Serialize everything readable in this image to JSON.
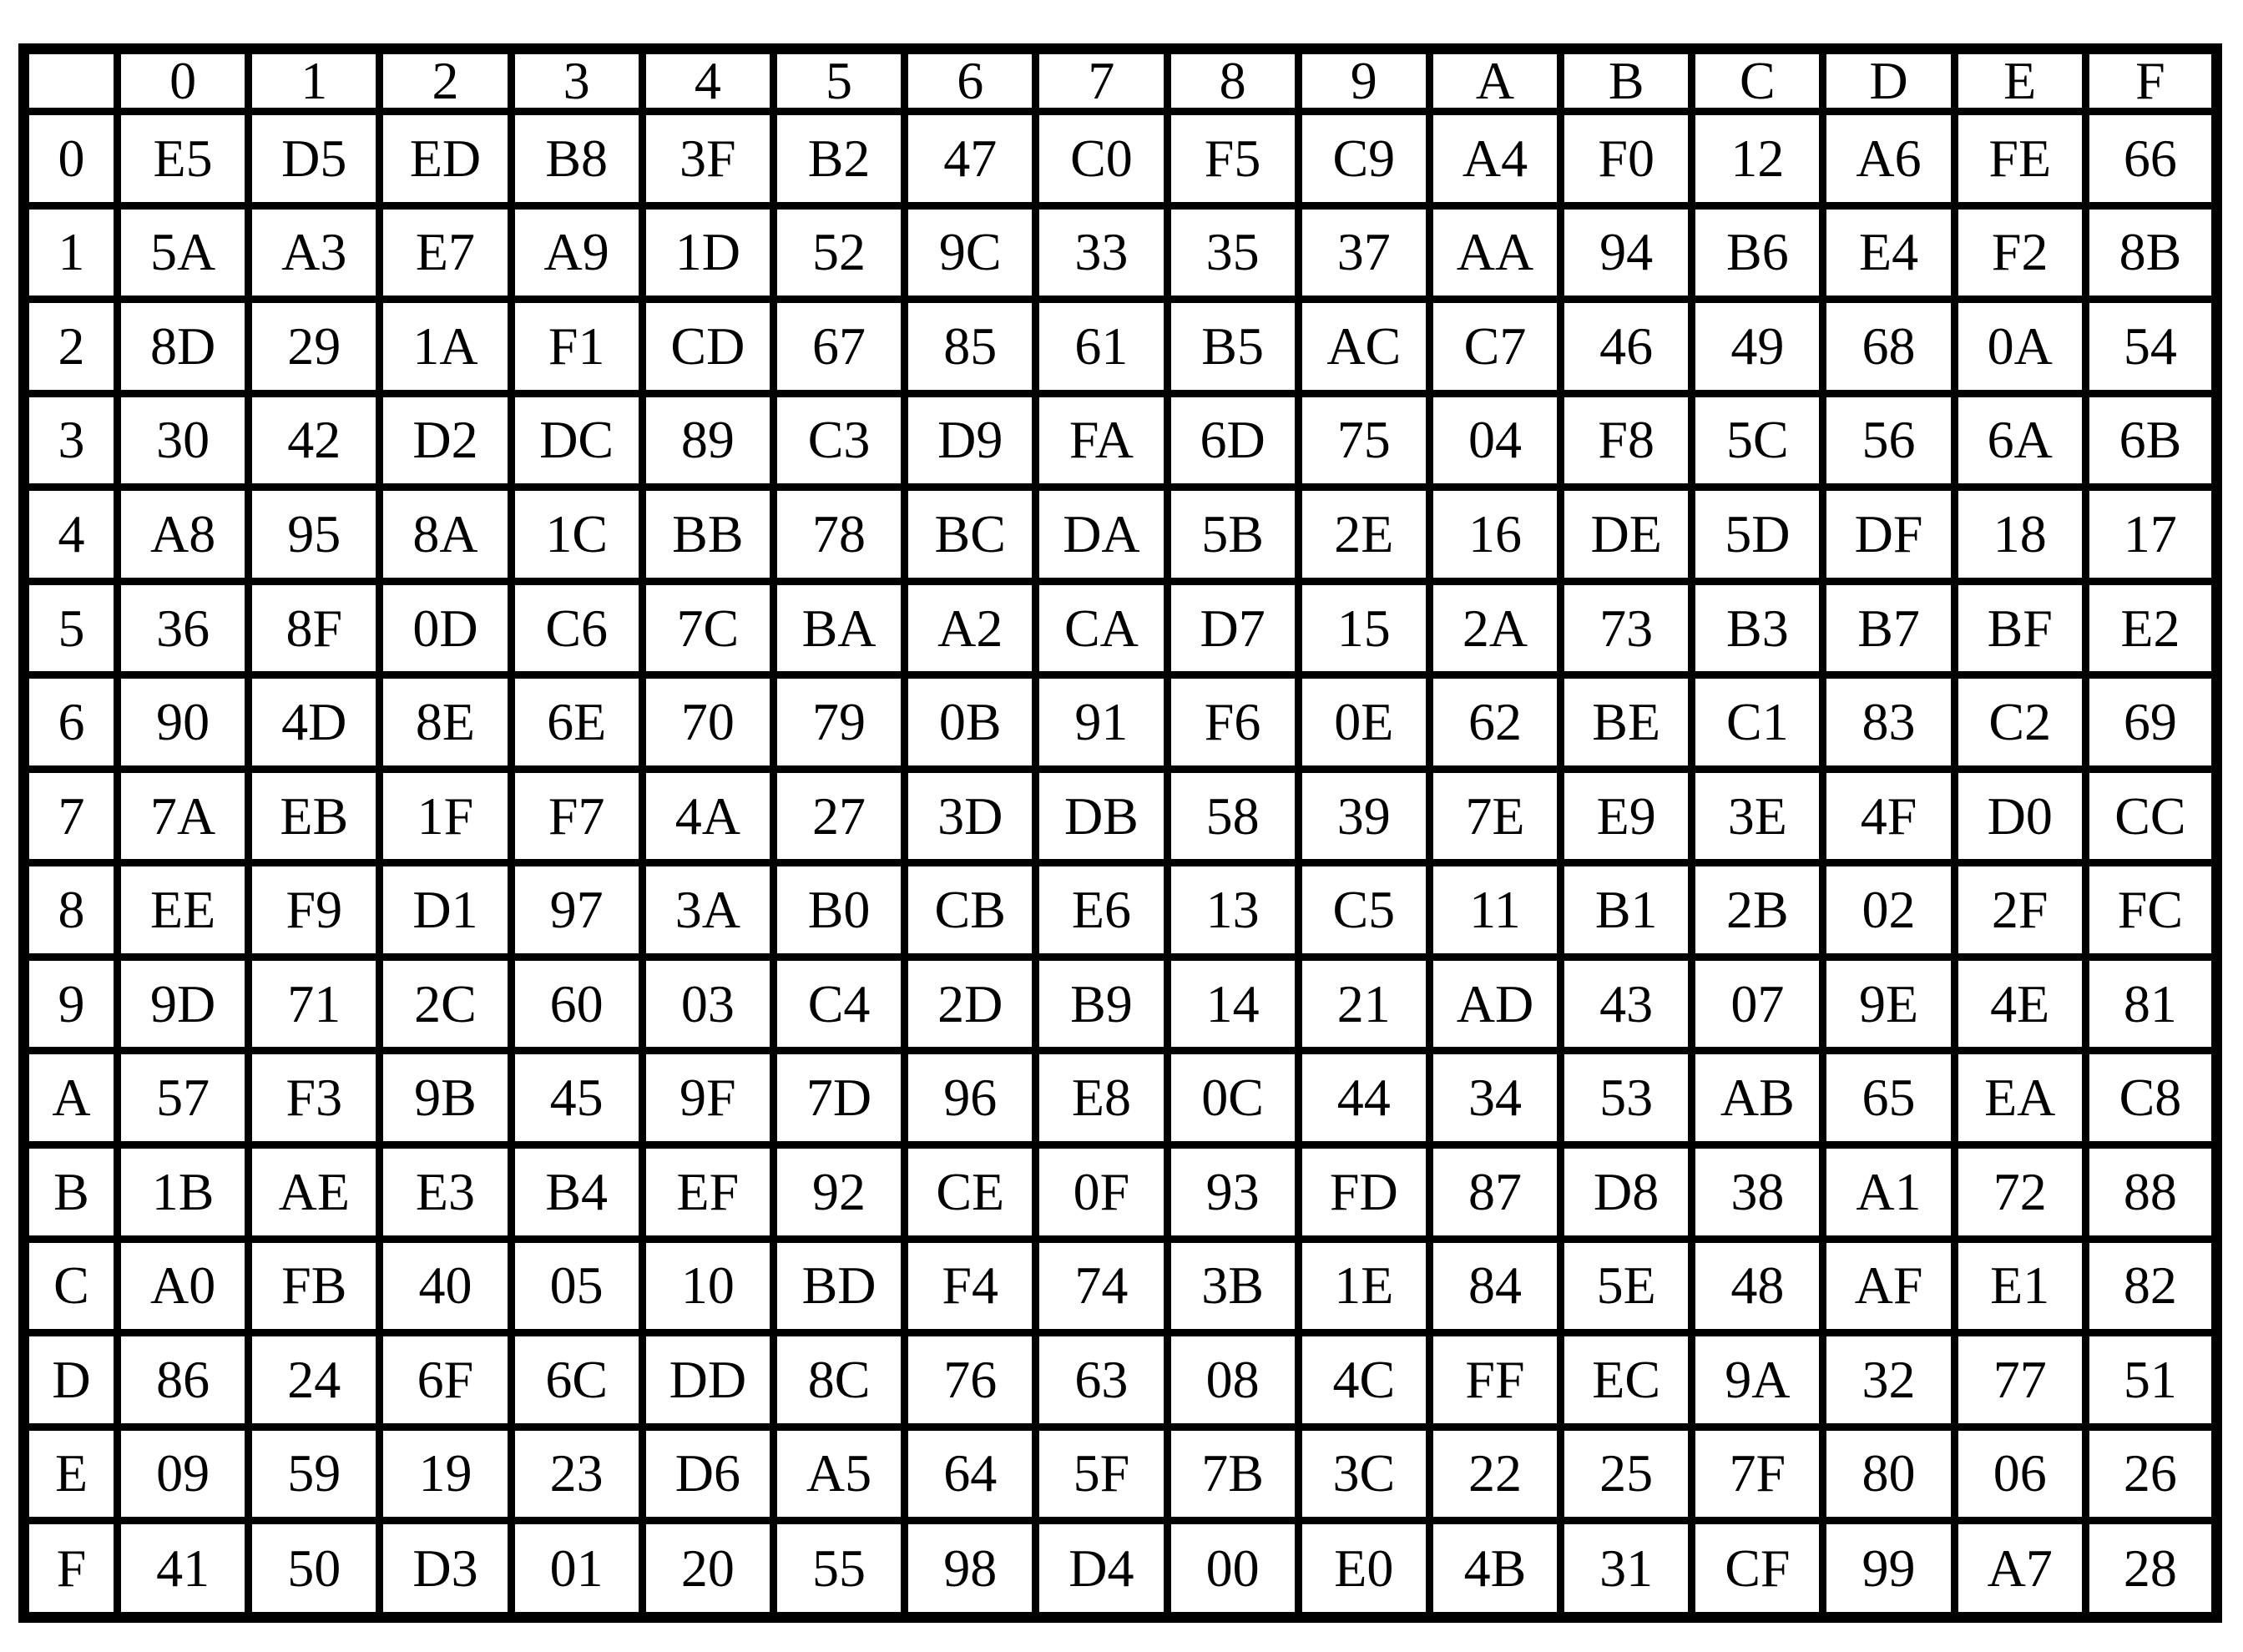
{
  "table": {
    "description": "16x16 hexadecimal substitution box (S-box) lookup table",
    "corner_label": "",
    "column_headers": [
      "0",
      "1",
      "2",
      "3",
      "4",
      "5",
      "6",
      "7",
      "8",
      "9",
      "A",
      "B",
      "C",
      "D",
      "E",
      "F"
    ],
    "row_headers": [
      "0",
      "1",
      "2",
      "3",
      "4",
      "5",
      "6",
      "7",
      "8",
      "9",
      "A",
      "B",
      "C",
      "D",
      "E",
      "F"
    ],
    "rows": [
      [
        "E5",
        "D5",
        "ED",
        "B8",
        "3F",
        "B2",
        "47",
        "C0",
        "F5",
        "C9",
        "A4",
        "F0",
        "12",
        "A6",
        "FE",
        "66"
      ],
      [
        "5A",
        "A3",
        "E7",
        "A9",
        "1D",
        "52",
        "9C",
        "33",
        "35",
        "37",
        "AA",
        "94",
        "B6",
        "E4",
        "F2",
        "8B"
      ],
      [
        "8D",
        "29",
        "1A",
        "F1",
        "CD",
        "67",
        "85",
        "61",
        "B5",
        "AC",
        "C7",
        "46",
        "49",
        "68",
        "0A",
        "54"
      ],
      [
        "30",
        "42",
        "D2",
        "DC",
        "89",
        "C3",
        "D9",
        "FA",
        "6D",
        "75",
        "04",
        "F8",
        "5C",
        "56",
        "6A",
        "6B"
      ],
      [
        "A8",
        "95",
        "8A",
        "1C",
        "BB",
        "78",
        "BC",
        "DA",
        "5B",
        "2E",
        "16",
        "DE",
        "5D",
        "DF",
        "18",
        "17"
      ],
      [
        "36",
        "8F",
        "0D",
        "C6",
        "7C",
        "BA",
        "A2",
        "CA",
        "D7",
        "15",
        "2A",
        "73",
        "B3",
        "B7",
        "BF",
        "E2"
      ],
      [
        "90",
        "4D",
        "8E",
        "6E",
        "70",
        "79",
        "0B",
        "91",
        "F6",
        "0E",
        "62",
        "BE",
        "C1",
        "83",
        "C2",
        "69"
      ],
      [
        "7A",
        "EB",
        "1F",
        "F7",
        "4A",
        "27",
        "3D",
        "DB",
        "58",
        "39",
        "7E",
        "E9",
        "3E",
        "4F",
        "D0",
        "CC"
      ],
      [
        "EE",
        "F9",
        "D1",
        "97",
        "3A",
        "B0",
        "CB",
        "E6",
        "13",
        "C5",
        "11",
        "B1",
        "2B",
        "02",
        "2F",
        "FC"
      ],
      [
        "9D",
        "71",
        "2C",
        "60",
        "03",
        "C4",
        "2D",
        "B9",
        "14",
        "21",
        "AD",
        "43",
        "07",
        "9E",
        "4E",
        "81"
      ],
      [
        "57",
        "F3",
        "9B",
        "45",
        "9F",
        "7D",
        "96",
        "E8",
        "0C",
        "44",
        "34",
        "53",
        "AB",
        "65",
        "EA",
        "C8"
      ],
      [
        "1B",
        "AE",
        "E3",
        "B4",
        "EF",
        "92",
        "CE",
        "0F",
        "93",
        "FD",
        "87",
        "D8",
        "38",
        "A1",
        "72",
        "88"
      ],
      [
        "A0",
        "FB",
        "40",
        "05",
        "10",
        "BD",
        "F4",
        "74",
        "3B",
        "1E",
        "84",
        "5E",
        "48",
        "AF",
        "E1",
        "82"
      ],
      [
        "86",
        "24",
        "6F",
        "6C",
        "DD",
        "8C",
        "76",
        "63",
        "08",
        "4C",
        "FF",
        "EC",
        "9A",
        "32",
        "77",
        "51"
      ],
      [
        "09",
        "59",
        "19",
        "23",
        "D6",
        "A5",
        "64",
        "5F",
        "7B",
        "3C",
        "22",
        "25",
        "7F",
        "80",
        "06",
        "26"
      ],
      [
        "41",
        "50",
        "D3",
        "01",
        "20",
        "55",
        "98",
        "D4",
        "00",
        "E0",
        "4B",
        "31",
        "CF",
        "99",
        "A7",
        "28"
      ]
    ]
  },
  "colors": {
    "border": "#000000",
    "background": "#ffffff",
    "text": "#000000"
  }
}
